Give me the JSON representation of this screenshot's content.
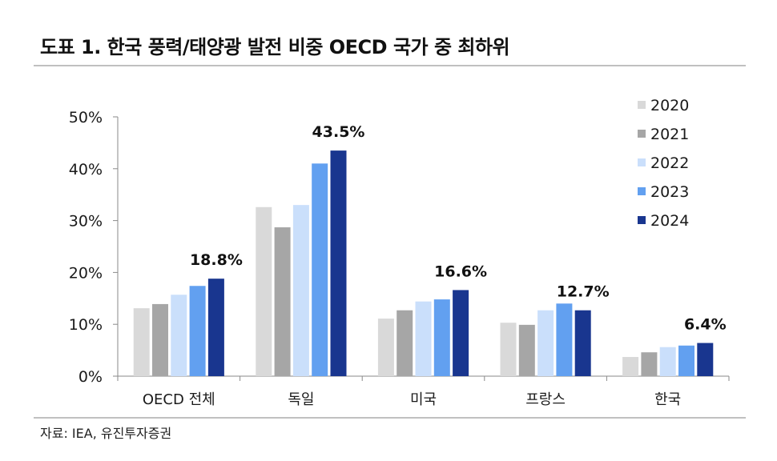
{
  "source": "자료: IEA, 유진투자증권",
  "colors": {
    "axis": "#8a8a8a",
    "rule": "#c0c0c0",
    "text": "#1a1a1a"
  },
  "chart_data": {
    "type": "bar",
    "title": "도표 1. 한국 풍력/태양광 발전 비중 OECD 국가 중 최하위",
    "xlabel": "",
    "ylabel": "",
    "categories": [
      "OECD 전체",
      "독일",
      "미국",
      "프랑스",
      "한국"
    ],
    "series": [
      {
        "name": "2020",
        "color": "#d9d9d9",
        "values": [
          13.1,
          32.6,
          11.1,
          10.3,
          3.7
        ]
      },
      {
        "name": "2021",
        "color": "#a6a6a6",
        "values": [
          13.9,
          28.7,
          12.7,
          9.9,
          4.6
        ]
      },
      {
        "name": "2022",
        "color": "#cadffb",
        "values": [
          15.7,
          33.0,
          14.4,
          12.7,
          5.6
        ]
      },
      {
        "name": "2023",
        "color": "#62a0f0",
        "values": [
          17.4,
          41.0,
          14.8,
          14.0,
          5.9
        ]
      },
      {
        "name": "2024",
        "color": "#19368f",
        "values": [
          18.8,
          43.5,
          16.6,
          12.7,
          6.4
        ],
        "labels": [
          "18.8%",
          "43.5%",
          "16.6%",
          "12.7%",
          "6.4%"
        ]
      }
    ],
    "ylim": [
      0,
      50
    ],
    "yticks": [
      {
        "value": 0,
        "label": "0%"
      },
      {
        "value": 10,
        "label": "10%"
      },
      {
        "value": 20,
        "label": "20%"
      },
      {
        "value": 30,
        "label": "30%"
      },
      {
        "value": 40,
        "label": "40%"
      },
      {
        "value": 50,
        "label": "50%"
      }
    ],
    "grid": false,
    "legend_position": "top-right"
  }
}
